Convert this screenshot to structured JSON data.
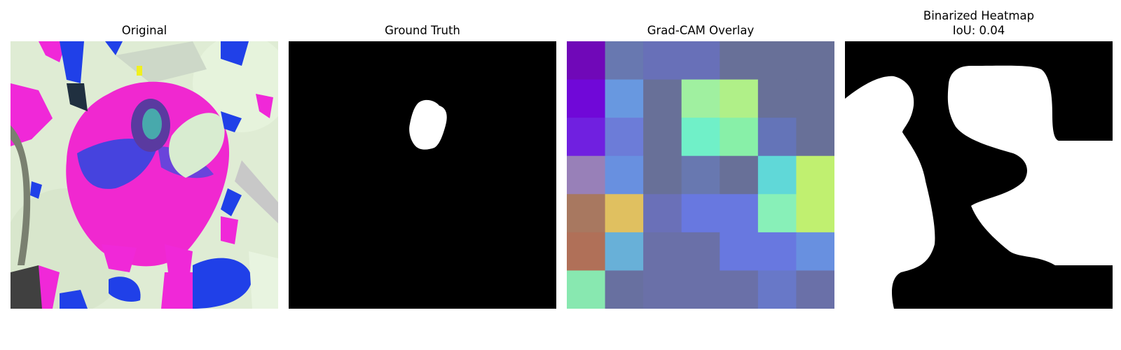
{
  "panels": {
    "original": {
      "title": "Original"
    },
    "ground_truth": {
      "title": "Ground Truth"
    },
    "gradcam": {
      "title": "Grad-CAM Overlay",
      "grid_rows": 7,
      "grid_cols": 7,
      "cell_colors": [
        [
          "#7008b8",
          "#6878b0",
          "#6870b8",
          "#6870b8",
          "#687098",
          "#687098",
          "#687098"
        ],
        [
          "#7008d8",
          "#6898e0",
          "#687098",
          "#a0f0a0",
          "#b0f088",
          "#687098",
          "#687098"
        ],
        [
          "#7020e0",
          "#6c7cd8",
          "#687098",
          "#70f0c8",
          "#88f0a8",
          "#6474b8",
          "#687098"
        ],
        [
          "#9880b8",
          "#6890e0",
          "#687098",
          "#6878b0",
          "#687098",
          "#60d8d8",
          "#c0f070"
        ],
        [
          "#a87860",
          "#e0c060",
          "#6a70b8",
          "#6878e0",
          "#6878e0",
          "#88f0b8",
          "#c0f070"
        ],
        [
          "#b07058",
          "#68b0d8",
          "#6a70a8",
          "#6a70a8",
          "#6878e0",
          "#6878e0",
          "#6890e0"
        ],
        [
          "#88e8b0",
          "#6870a0",
          "#6a70a8",
          "#6a70a8",
          "#6a70a8",
          "#6878c8",
          "#6a70a8"
        ]
      ]
    },
    "binarized": {
      "title_line1": "Binarized Heatmap",
      "title_line2": "IoU: 0.04",
      "iou": 0.04
    }
  },
  "colors": {
    "mask_foreground": "#ffffff",
    "mask_background": "#000000",
    "original_magenta": "#f028d8",
    "original_blue": "#2040e8",
    "original_pale": "#e0f0d0"
  }
}
